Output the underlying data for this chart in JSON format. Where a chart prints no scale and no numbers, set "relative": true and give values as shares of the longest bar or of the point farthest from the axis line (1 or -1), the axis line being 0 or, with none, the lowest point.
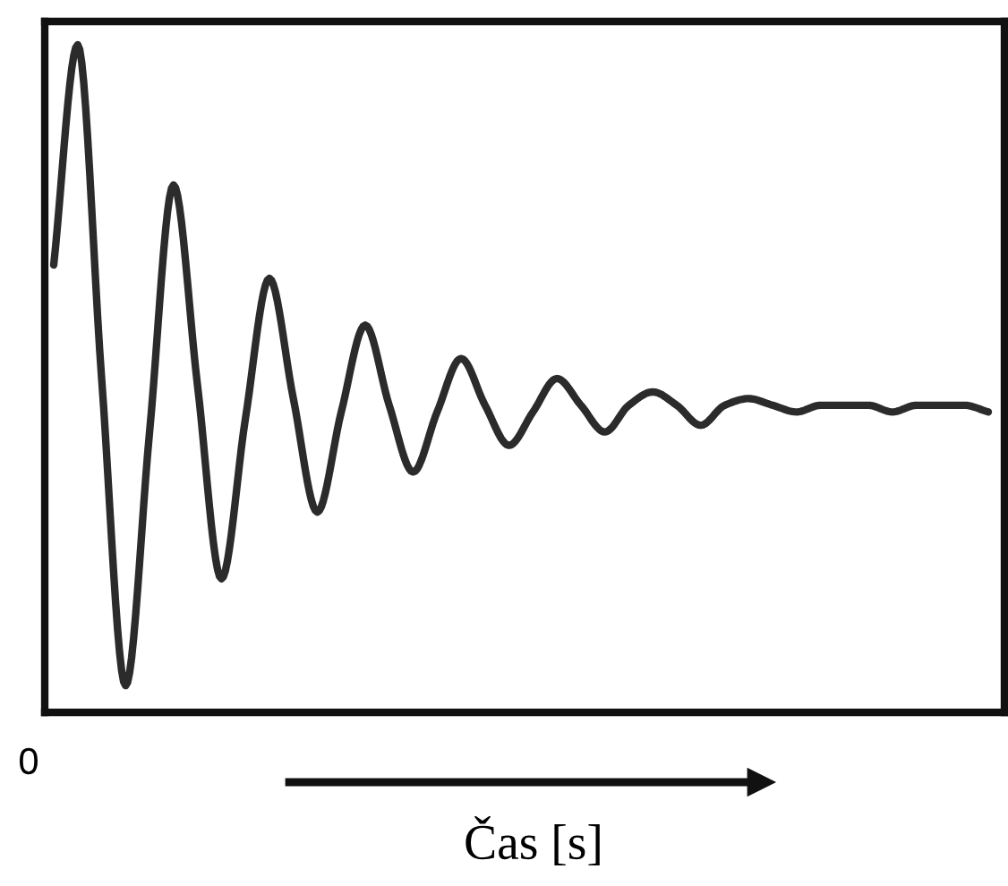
{
  "chart_data": {
    "type": "line",
    "relative": true,
    "xlabel": "Čas [s]",
    "annotations": [
      "0"
    ],
    "categories": [
      null,
      null,
      null,
      null,
      null,
      null,
      null,
      null,
      null,
      null,
      null,
      null,
      null,
      null,
      null,
      null,
      null,
      null,
      null,
      null,
      null,
      null,
      null,
      null,
      null,
      null,
      null,
      null,
      null,
      null,
      null,
      null,
      null,
      null,
      null,
      null,
      null,
      null,
      null,
      null
    ],
    "series": [
      {
        "color": "#2b2b2b",
        "values": [
          0.67,
          1.0,
          0.5,
          0.04,
          0.42,
          0.79,
          0.49,
          0.2,
          0.44,
          0.65,
          0.47,
          0.3,
          0.45,
          0.58,
          0.46,
          0.36,
          0.45,
          0.53,
          0.46,
          0.4,
          0.45,
          0.5,
          0.46,
          0.42,
          0.46,
          0.48,
          0.46,
          0.43,
          0.46,
          0.47,
          0.46,
          0.45,
          0.46,
          0.46,
          0.46,
          0.45,
          0.46,
          0.46,
          0.46,
          0.45
        ]
      }
    ],
    "grid": false,
    "legend": false,
    "marker": "none",
    "line_style": "solid"
  }
}
